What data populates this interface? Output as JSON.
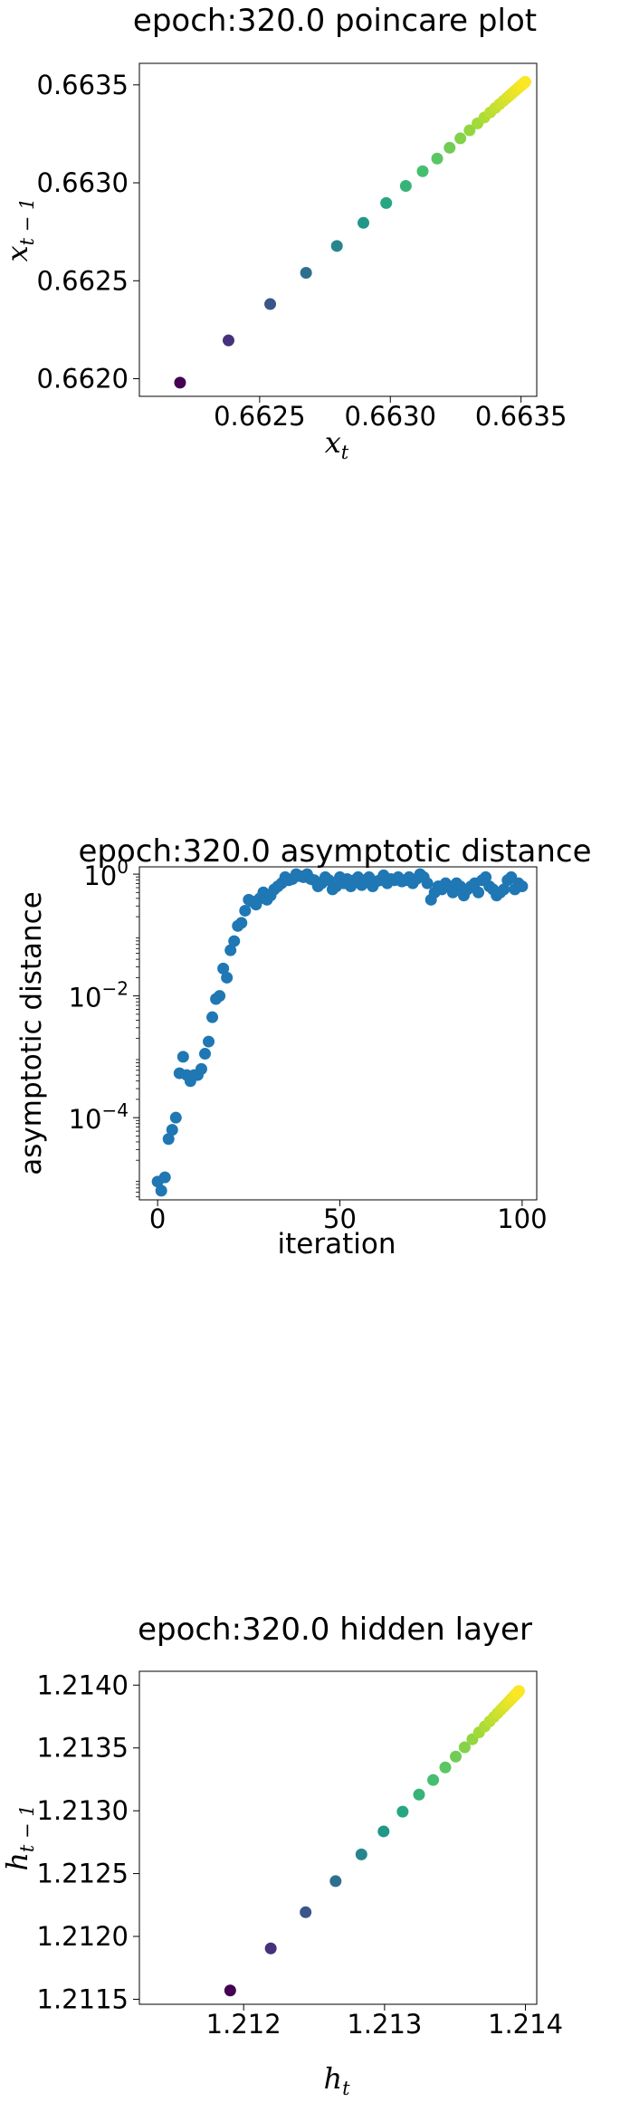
{
  "chart_data": [
    {
      "type": "scatter",
      "title": "epoch:320.0 poincare plot",
      "xlabel": "x",
      "xlabel_sub": "t",
      "ylabel": "x",
      "ylabel_sub": "t − 1",
      "xlim": [
        0.66204,
        0.66356
      ],
      "ylim": [
        0.66191,
        0.66361
      ],
      "xticks": [
        0.6625,
        0.663,
        0.6635
      ],
      "xtick_labels": [
        "0.6625",
        "0.6630",
        "0.6635"
      ],
      "yticks": [
        0.662,
        0.6625,
        0.663,
        0.6635
      ],
      "ytick_labels": [
        "0.6620",
        "0.6625",
        "0.6630",
        "0.6635"
      ],
      "colormap": "viridis",
      "colors": [
        "#440154",
        "#46327e",
        "#365c8d",
        "#277f8e",
        "#1fa187",
        "#4ac16d",
        "#a0da39",
        "#fde725"
      ],
      "points": {
        "start": 0.66198,
        "ratio": 0.86,
        "limit": 0.66352,
        "count": 40
      }
    },
    {
      "type": "scatter",
      "title": "epoch:320.0 asymptotic distance",
      "xlabel": "iteration",
      "ylabel": "asymptotic distance",
      "yscale": "log",
      "xlim": [
        -5,
        104
      ],
      "ylim_log10": [
        -5.35,
        0.12
      ],
      "xticks": [
        0,
        50,
        100
      ],
      "xtick_labels": [
        "0",
        "50",
        "100"
      ],
      "yticks_log10": [
        0,
        -2,
        -4
      ],
      "ytick_base": "10",
      "ytick_exponents": [
        "0",
        "−2",
        "−4"
      ],
      "color": "#1f77b4",
      "x": [
        0,
        1,
        2,
        3,
        4,
        5,
        6,
        7,
        8,
        9,
        10,
        11,
        12,
        13,
        14,
        15,
        16,
        17,
        18,
        19,
        20,
        21,
        22,
        23,
        24,
        25,
        26,
        27,
        28,
        29,
        30,
        31,
        32,
        33,
        34,
        35,
        36,
        37,
        38,
        39,
        40,
        41,
        42,
        43,
        44,
        45,
        46,
        47,
        48,
        49,
        50,
        51,
        52,
        53,
        54,
        55,
        56,
        57,
        58,
        59,
        60,
        61,
        62,
        63,
        64,
        65,
        66,
        67,
        68,
        69,
        70,
        71,
        72,
        73,
        74,
        75,
        76,
        77,
        78,
        79,
        80,
        81,
        82,
        83,
        84,
        85,
        86,
        87,
        88,
        89,
        90,
        91,
        92,
        93,
        94,
        95,
        96,
        97,
        98,
        99,
        100
      ],
      "log10_y": [
        -5.05,
        -5.2,
        -4.98,
        -4.35,
        -4.2,
        -4.0,
        -3.27,
        -3.0,
        -3.3,
        -3.4,
        -3.3,
        -3.3,
        -3.2,
        -2.95,
        -2.75,
        -2.35,
        -2.05,
        -2.0,
        -1.55,
        -1.7,
        -1.25,
        -1.1,
        -0.85,
        -0.8,
        -0.6,
        -0.42,
        -0.45,
        -0.5,
        -0.4,
        -0.3,
        -0.42,
        -0.35,
        -0.25,
        -0.2,
        -0.15,
        -0.05,
        -0.1,
        -0.08,
        0.0,
        -0.03,
        -0.05,
        0.0,
        -0.08,
        -0.1,
        -0.2,
        -0.15,
        -0.05,
        -0.1,
        -0.25,
        -0.2,
        -0.05,
        -0.15,
        -0.08,
        -0.2,
        -0.1,
        -0.05,
        -0.18,
        -0.1,
        -0.05,
        -0.2,
        -0.12,
        -0.1,
        -0.02,
        -0.15,
        -0.08,
        -0.1,
        -0.05,
        -0.12,
        -0.1,
        -0.05,
        -0.15,
        -0.08,
        0.0,
        -0.05,
        -0.15,
        -0.42,
        -0.3,
        -0.2,
        -0.25,
        -0.15,
        -0.2,
        -0.3,
        -0.15,
        -0.2,
        -0.35,
        -0.25,
        -0.2,
        -0.15,
        -0.3,
        -0.1,
        -0.05,
        -0.2,
        -0.25,
        -0.35,
        -0.3,
        -0.25,
        -0.1,
        -0.05,
        -0.25,
        -0.15,
        -0.2
      ]
    },
    {
      "type": "scatter",
      "title": "epoch:320.0 hidden layer",
      "xlabel": "h",
      "xlabel_sub": "t",
      "ylabel": "h",
      "ylabel_sub": "t − 1",
      "xlim": [
        1.21126,
        1.21408
      ],
      "ylim": [
        1.21146,
        1.21411
      ],
      "xticks": [
        1.212,
        1.213,
        1.214
      ],
      "xtick_labels": [
        "1.212",
        "1.213",
        "1.214"
      ],
      "yticks": [
        1.2115,
        1.212,
        1.2125,
        1.213,
        1.2135,
        1.214
      ],
      "ytick_labels": [
        "1.2115",
        "1.2120",
        "1.2125",
        "1.2130",
        "1.2135",
        "1.2140"
      ],
      "colormap": "viridis",
      "colors": [
        "#440154",
        "#46327e",
        "#365c8d",
        "#277f8e",
        "#1fa187",
        "#4ac16d",
        "#a0da39",
        "#fde725"
      ],
      "points": {
        "start": 1.21157,
        "ratio": 0.86,
        "limit": 1.21396,
        "count": 40
      }
    }
  ]
}
